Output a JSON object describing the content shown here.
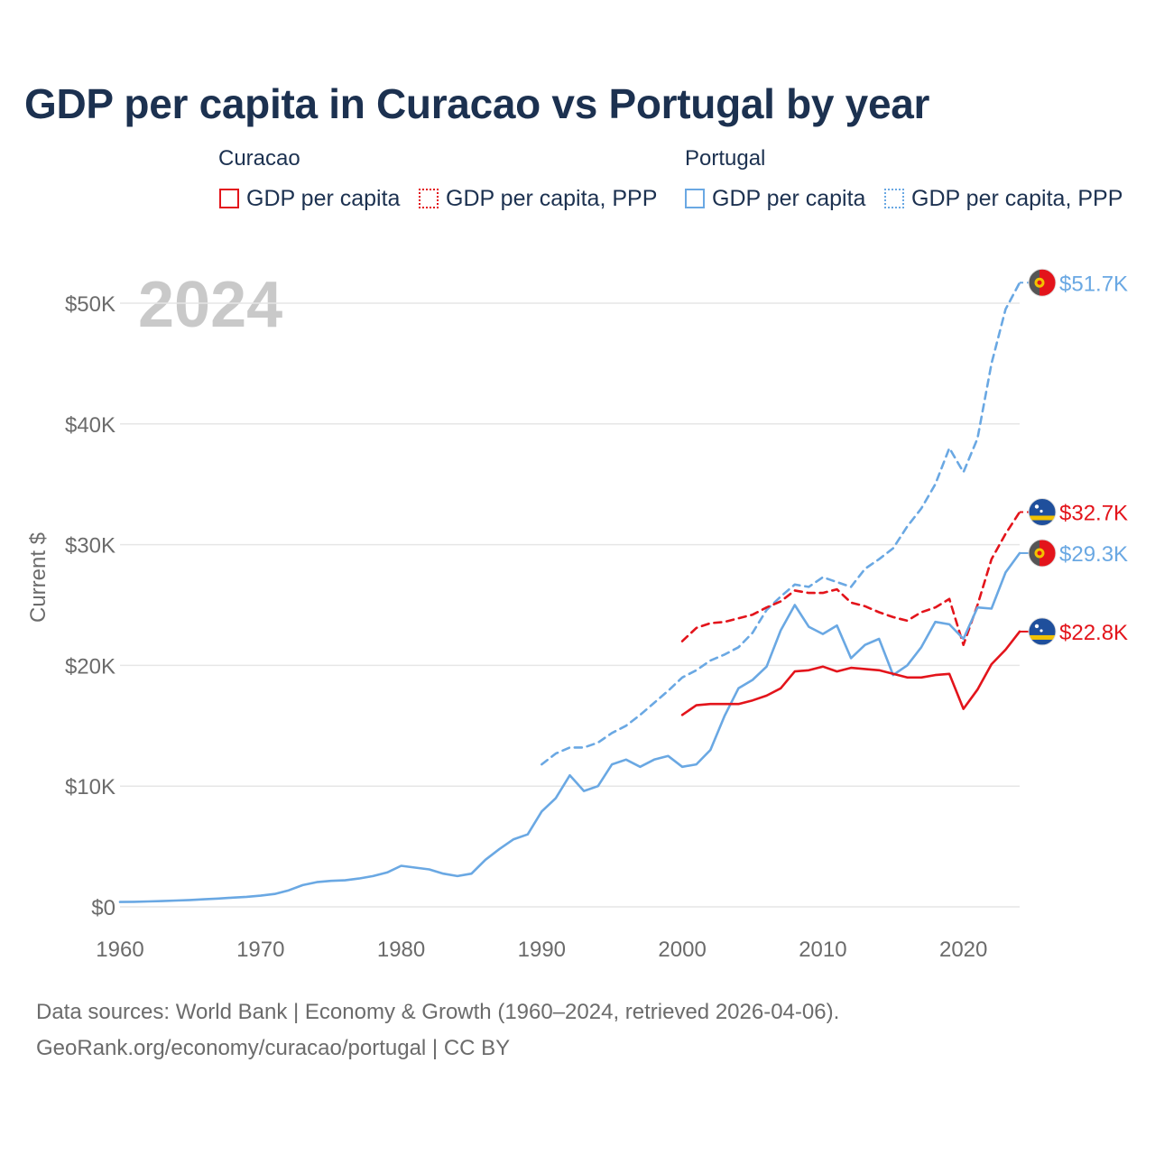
{
  "title": "GDP per capita in Curacao vs Portugal by year",
  "legend": {
    "curacao_label": "Curacao",
    "portugal_label": "Portugal",
    "items": [
      {
        "label": "GDP per capita",
        "color": "#e3141b",
        "style": "solid"
      },
      {
        "label": "GDP per capita, PPP",
        "color": "#e3141b",
        "style": "dotted"
      },
      {
        "label": "GDP per capita",
        "color": "#6aa8e3",
        "style": "solid"
      },
      {
        "label": "GDP per capita, PPP",
        "color": "#6aa8e3",
        "style": "dotted"
      }
    ]
  },
  "year_watermark": "2024",
  "footer": {
    "line1": "Data sources: World Bank | Economy & Growth (1960–2024, retrieved 2026-04-06).",
    "line2": "GeoRank.org/economy/curacao/portugal | CC BY"
  },
  "chart_data": {
    "type": "line",
    "title": "GDP per capita in Curacao vs Portugal by year",
    "xlabel": "",
    "ylabel": "Current $",
    "xlim": [
      1960,
      2024
    ],
    "ylim": [
      0,
      52000
    ],
    "x_ticks": [
      1960,
      1970,
      1980,
      1990,
      2000,
      2010,
      2020
    ],
    "x_tick_labels": [
      "1960",
      "1970",
      "1980",
      "1990",
      "2000",
      "2010",
      "2020"
    ],
    "y_ticks": [
      0,
      10000,
      20000,
      30000,
      40000,
      50000
    ],
    "y_tick_labels": [
      "$0",
      "$10K",
      "$20K",
      "$30K",
      "$40K",
      "$50K"
    ],
    "grid": true,
    "series": [
      {
        "name": "Portugal GDP per capita, PPP",
        "country": "Portugal",
        "color": "#6aa8e3",
        "dash": "dashed",
        "end_label": "$51.7K",
        "x": [
          1990,
          1991,
          1992,
          1993,
          1994,
          1995,
          1996,
          1997,
          1998,
          1999,
          2000,
          2001,
          2002,
          2003,
          2004,
          2005,
          2006,
          2007,
          2008,
          2009,
          2010,
          2011,
          2012,
          2013,
          2014,
          2015,
          2016,
          2017,
          2018,
          2019,
          2020,
          2021,
          2022,
          2023,
          2024
        ],
        "values": [
          11800,
          12700,
          13200,
          13200,
          13600,
          14400,
          15000,
          15900,
          16900,
          17900,
          19000,
          19600,
          20400,
          20900,
          21500,
          22700,
          24600,
          25700,
          26700,
          26500,
          27300,
          26900,
          26500,
          28000,
          28800,
          29700,
          31500,
          33000,
          35000,
          38000,
          36000,
          38800,
          45000,
          49500,
          51700
        ]
      },
      {
        "name": "Curacao GDP per capita, PPP",
        "country": "Curacao",
        "color": "#e3141b",
        "dash": "dashed",
        "end_label": "$32.7K",
        "x": [
          2000,
          2001,
          2002,
          2003,
          2004,
          2005,
          2006,
          2007,
          2008,
          2009,
          2010,
          2011,
          2012,
          2013,
          2014,
          2015,
          2016,
          2017,
          2018,
          2019,
          2020,
          2021,
          2022,
          2023,
          2024
        ],
        "values": [
          22000,
          23100,
          23500,
          23600,
          23900,
          24200,
          24800,
          25300,
          26200,
          26000,
          26000,
          26300,
          25200,
          24900,
          24400,
          24000,
          23700,
          24400,
          24800,
          25500,
          21700,
          25000,
          28800,
          30900,
          32700
        ]
      },
      {
        "name": "Portugal GDP per capita",
        "country": "Portugal",
        "color": "#6aa8e3",
        "dash": "solid",
        "end_label": "$29.3K",
        "x": [
          1960,
          1961,
          1962,
          1963,
          1964,
          1965,
          1966,
          1967,
          1968,
          1969,
          1970,
          1971,
          1972,
          1973,
          1974,
          1975,
          1976,
          1977,
          1978,
          1979,
          1980,
          1981,
          1982,
          1983,
          1984,
          1985,
          1986,
          1987,
          1988,
          1989,
          1990,
          1991,
          1992,
          1993,
          1994,
          1995,
          1996,
          1997,
          1998,
          1999,
          2000,
          2001,
          2002,
          2003,
          2004,
          2005,
          2006,
          2007,
          2008,
          2009,
          2010,
          2011,
          2012,
          2013,
          2014,
          2015,
          2016,
          2017,
          2018,
          2019,
          2020,
          2021,
          2022,
          2023,
          2024
        ],
        "values": [
          400,
          420,
          450,
          480,
          520,
          570,
          630,
          690,
          760,
          830,
          930,
          1070,
          1370,
          1800,
          2050,
          2150,
          2200,
          2350,
          2550,
          2850,
          3400,
          3250,
          3100,
          2750,
          2550,
          2750,
          3900,
          4800,
          5600,
          6000,
          7900,
          9000,
          10900,
          9600,
          10000,
          11800,
          12200,
          11600,
          12200,
          12500,
          11600,
          11800,
          13000,
          15800,
          18100,
          18800,
          19900,
          22900,
          25000,
          23200,
          22600,
          23300,
          20600,
          21700,
          22200,
          19200,
          20000,
          21500,
          23600,
          23400,
          22200,
          24800,
          24700,
          27700,
          29300
        ]
      },
      {
        "name": "Curacao GDP per capita",
        "country": "Curacao",
        "color": "#e3141b",
        "dash": "solid",
        "end_label": "$22.8K",
        "x": [
          2000,
          2001,
          2002,
          2003,
          2004,
          2005,
          2006,
          2007,
          2008,
          2009,
          2010,
          2011,
          2012,
          2013,
          2014,
          2015,
          2016,
          2017,
          2018,
          2019,
          2020,
          2021,
          2022,
          2023,
          2024
        ],
        "values": [
          15900,
          16700,
          16800,
          16800,
          16800,
          17100,
          17500,
          18100,
          19500,
          19600,
          19900,
          19500,
          19800,
          19700,
          19600,
          19300,
          19000,
          19000,
          19200,
          19300,
          16400,
          18000,
          20100,
          21300,
          22800
        ]
      }
    ]
  }
}
